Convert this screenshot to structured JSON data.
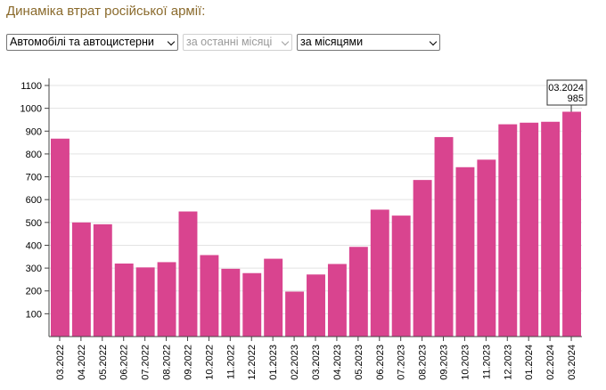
{
  "header": {
    "title": "Динаміка втрат російської армії:"
  },
  "controls": {
    "category": "Автомобілі та автоцистерни",
    "period": "за останні місяці",
    "grouping": "за місяцями"
  },
  "tooltip": {
    "label": "03.2024",
    "value": "985"
  },
  "colors": {
    "bar": "#d9448f",
    "title": "#8a6a2c",
    "grid": "#e3e3e3"
  },
  "chart_data": {
    "type": "bar",
    "categories": [
      "03.2022",
      "04.2022",
      "05.2022",
      "06.2022",
      "07.2022",
      "08.2022",
      "09.2022",
      "10.2022",
      "11.2022",
      "12.2022",
      "01.2023",
      "02.2023",
      "03.2023",
      "04.2023",
      "05.2023",
      "06.2023",
      "07.2023",
      "08.2023",
      "09.2023",
      "10.2023",
      "11.2023",
      "12.2023",
      "01.2024",
      "02.2024",
      "03.2024"
    ],
    "values": [
      867,
      500,
      492,
      320,
      303,
      326,
      548,
      357,
      297,
      278,
      341,
      197,
      272,
      318,
      393,
      556,
      530,
      686,
      874,
      742,
      775,
      930,
      937,
      941,
      985
    ],
    "yticks": [
      100,
      200,
      300,
      400,
      500,
      600,
      700,
      800,
      900,
      1000,
      1100
    ],
    "ylim": [
      0,
      1100
    ],
    "grid": true
  }
}
